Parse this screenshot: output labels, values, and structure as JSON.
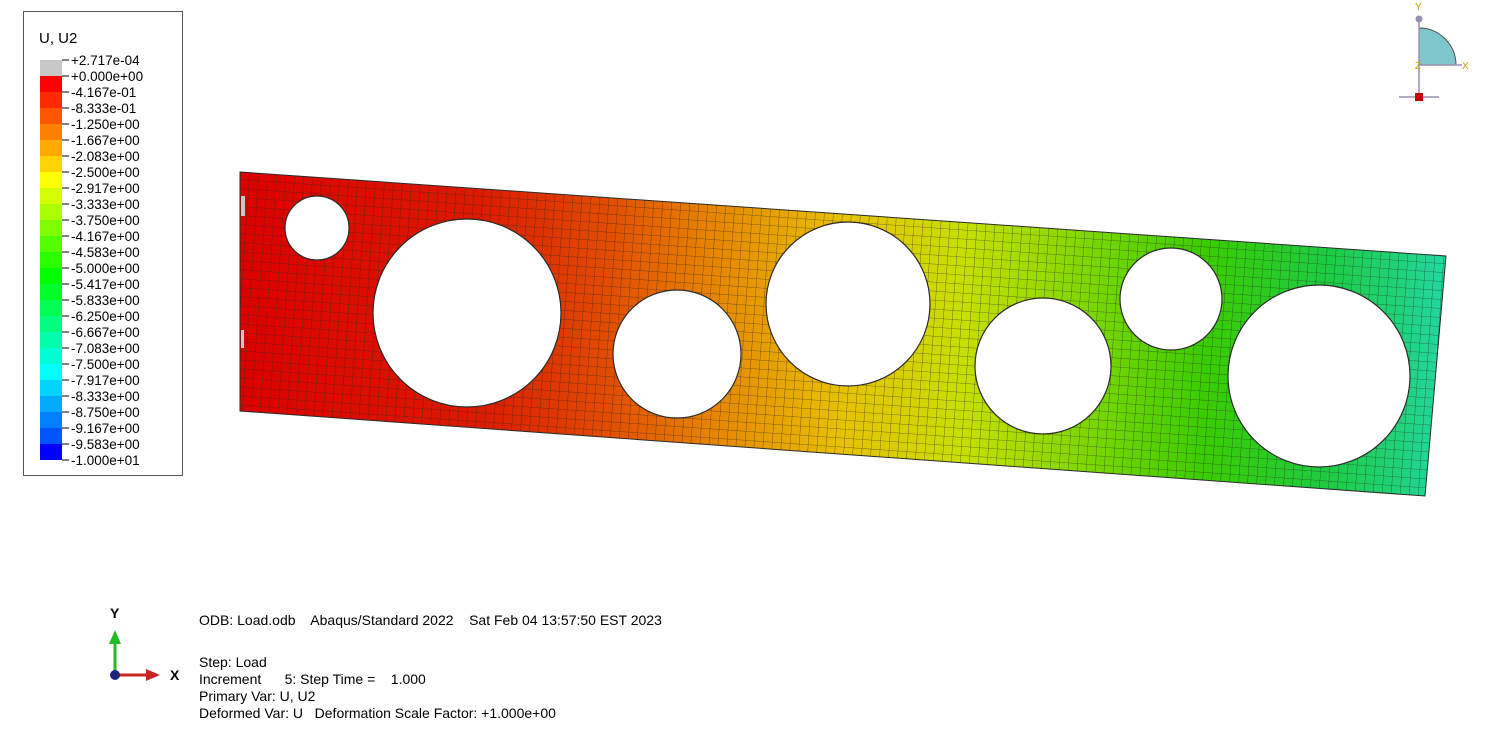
{
  "legend": {
    "title": "U, U2",
    "labels": [
      "+2.717e-04",
      "+0.000e+00",
      "-4.167e-01",
      "-8.333e-01",
      "-1.250e+00",
      "-1.667e+00",
      "-2.083e+00",
      "-2.500e+00",
      "-2.917e+00",
      "-3.333e+00",
      "-3.750e+00",
      "-4.167e+00",
      "-4.583e+00",
      "-5.000e+00",
      "-5.417e+00",
      "-5.833e+00",
      "-6.250e+00",
      "-6.667e+00",
      "-7.083e+00",
      "-7.500e+00",
      "-7.917e+00",
      "-8.333e+00",
      "-8.750e+00",
      "-9.167e+00",
      "-9.583e+00",
      "-1.000e+01"
    ],
    "colors": [
      "#c8c8c8",
      "#ff0000",
      "#ff2a00",
      "#ff5500",
      "#ff7f00",
      "#ffaa00",
      "#ffd400",
      "#ffff00",
      "#d4ff00",
      "#aaff00",
      "#7fff00",
      "#55ff00",
      "#2aff00",
      "#00ff00",
      "#00ff2a",
      "#00ff55",
      "#00ff7f",
      "#00ffaa",
      "#00ffd4",
      "#00ffff",
      "#00d4ff",
      "#00aaff",
      "#007fff",
      "#0055ff",
      "#0000ff"
    ]
  },
  "info": {
    "odb_line": "ODB: Load.odb    Abaqus/Standard 2022    Sat Feb 04 13:57:50 EST 2023",
    "step_line": "Step: Load",
    "increment_line": "Increment      5: Step Time =    1.000",
    "primary_var_line": "Primary Var: U, U2",
    "deformed_var_line": "Deformed Var: U   Deformation Scale Factor: +1.000e+00"
  },
  "triad_bottom": {
    "y_label": "Y",
    "x_label": "X"
  },
  "triad_top": {
    "y_label": "Y",
    "x_label": "X",
    "z_label": "Z"
  },
  "colors": {
    "mesh_line": "#2b2b2b",
    "axis_green": "#22bb22",
    "axis_red": "#cc2222",
    "origin_blue": "#1a237e",
    "view_cube_fill": "#7fc6cc"
  }
}
